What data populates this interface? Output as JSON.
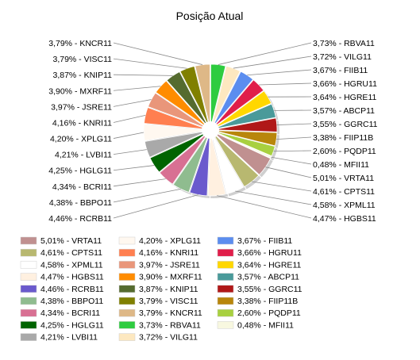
{
  "chart_data": {
    "type": "pie",
    "title": "Posição Atual",
    "legend_position": "bottom",
    "slices": [
      {
        "name": "RBVA11",
        "label": "3,73% - RBVA11",
        "value": 3.73,
        "color": "#2ecc40"
      },
      {
        "name": "VILG11",
        "label": "3,72% - VILG11",
        "value": 3.72,
        "color": "#fde8c0"
      },
      {
        "name": "FIIB11",
        "label": "3,67% - FIIB11",
        "value": 3.67,
        "color": "#5b8def"
      },
      {
        "name": "HGRU11",
        "label": "3,66% - HGRU11",
        "value": 3.66,
        "color": "#e01e4a"
      },
      {
        "name": "HGRE11",
        "label": "3,64% - HGRE11",
        "value": 3.64,
        "color": "#ffd700"
      },
      {
        "name": "ABCP11",
        "label": "3,57% - ABCP11",
        "value": 3.57,
        "color": "#4a9a9a"
      },
      {
        "name": "GGRC11",
        "label": "3,55% - GGRC11",
        "value": 3.55,
        "color": "#b01818"
      },
      {
        "name": "FIIP11B",
        "label": "3,38% - FIIP11B",
        "value": 3.38,
        "color": "#b8860b"
      },
      {
        "name": "PQDP11",
        "label": "2,60% - PQDP11",
        "value": 2.6,
        "color": "#a8d040"
      },
      {
        "name": "MFII11",
        "label": "0,48% - MFII11",
        "value": 0.48,
        "color": "#f8f8e0"
      },
      {
        "name": "VRTA11",
        "label": "5,01% - VRTA11",
        "value": 5.01,
        "color": "#c09090"
      },
      {
        "name": "CPTS11",
        "label": "4,61% - CPTS11",
        "value": 4.61,
        "color": "#b8b870"
      },
      {
        "name": "XPML11",
        "label": "4,58% - XPML11",
        "value": 4.58,
        "color": "#ffffff"
      },
      {
        "name": "HGBS11",
        "label": "4,47% - HGBS11",
        "value": 4.47,
        "color": "#fff0e0"
      },
      {
        "name": "RCRB11",
        "label": "4,46% - RCRB11",
        "value": 4.46,
        "color": "#6a5acd"
      },
      {
        "name": "BBPO11",
        "label": "4,38% - BBPO11",
        "value": 4.38,
        "color": "#8fbc8f"
      },
      {
        "name": "BCRI11",
        "label": "4,34% - BCRI11",
        "value": 4.34,
        "color": "#d87093"
      },
      {
        "name": "HGLG11",
        "label": "4,25% - HGLG11",
        "value": 4.25,
        "color": "#006400"
      },
      {
        "name": "LVBI11",
        "label": "4,21% - LVBI11",
        "value": 4.21,
        "color": "#a9a9a9"
      },
      {
        "name": "XPLG11",
        "label": "4,20% - XPLG11",
        "value": 4.2,
        "color": "#fff8f0"
      },
      {
        "name": "KNRI11",
        "label": "4,16% - KNRI11",
        "value": 4.16,
        "color": "#ff7f50"
      },
      {
        "name": "JSRE11",
        "label": "3,97% - JSRE11",
        "value": 3.97,
        "color": "#e9967a"
      },
      {
        "name": "MXRF11",
        "label": "3,90% - MXRF11",
        "value": 3.9,
        "color": "#ff8c00"
      },
      {
        "name": "KNIP11",
        "label": "3,87% - KNIP11",
        "value": 3.87,
        "color": "#556b2f"
      },
      {
        "name": "VISC11",
        "label": "3,79% - VISC11",
        "value": 3.79,
        "color": "#808000"
      },
      {
        "name": "KNCR11",
        "label": "3,79% - KNCR11",
        "value": 3.79,
        "color": "#deb887"
      }
    ],
    "legend_columns": [
      [
        "VRTA11",
        "CPTS11",
        "XPML11",
        "HGBS11",
        "RCRB11",
        "BBPO11",
        "BCRI11",
        "HGLG11",
        "LVBI11"
      ],
      [
        "XPLG11",
        "KNRI11",
        "JSRE11",
        "MXRF11",
        "KNIP11",
        "VISC11",
        "KNCR11",
        "RBVA11",
        "VILG11"
      ],
      [
        "FIIB11",
        "HGRU11",
        "HGRE11",
        "ABCP11",
        "GGRC11",
        "FIIP11B",
        "PQDP11",
        "MFII11"
      ]
    ]
  }
}
